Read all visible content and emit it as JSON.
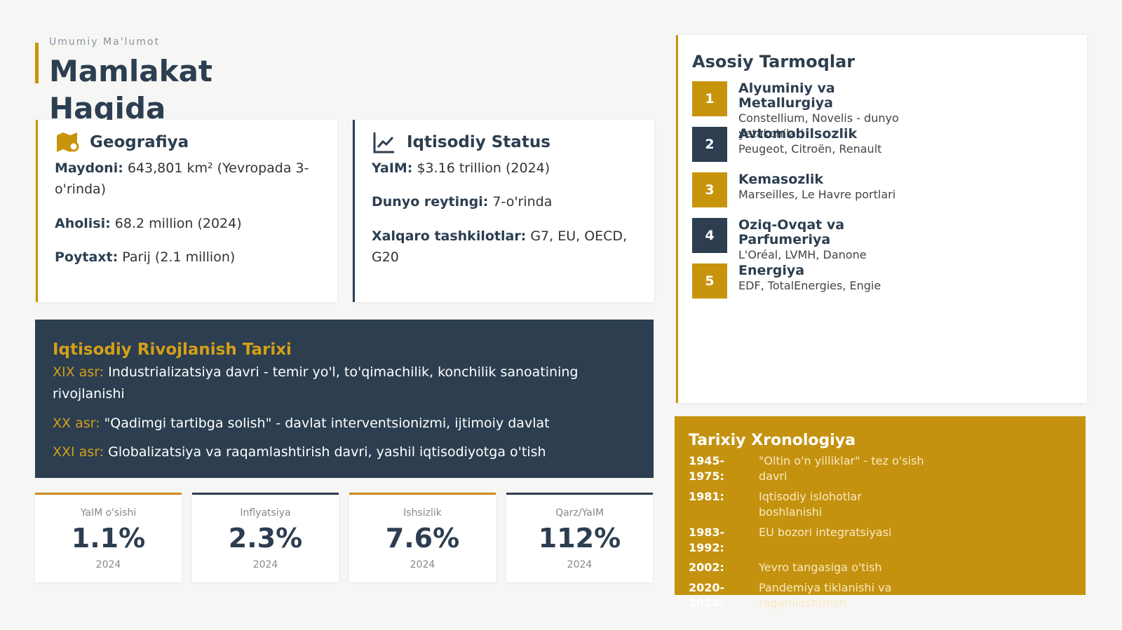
{
  "header": {
    "kicker": "Umumiy Ma'lumot",
    "title": "Mamlakat Haqida"
  },
  "geography": {
    "title": "Geografiya",
    "items": [
      {
        "label": "Maydoni:",
        "text": "643,801 km² (Yevropada 3-o'rinda)"
      },
      {
        "label": "Aholisi:",
        "text": "68.2 million (2024)"
      },
      {
        "label": "Poytaxt:",
        "text": "Parij (2.1 million)"
      }
    ]
  },
  "economy": {
    "title": "Iqtisodiy Status",
    "items": [
      {
        "label": "YaIM:",
        "text": "$3.16 trillion (2024)"
      },
      {
        "label": "Dunyo reytingi:",
        "text": "7-o'rinda"
      },
      {
        "label": "Xalqaro tashkilotlar:",
        "text": "G7, EU, OECD, G20"
      }
    ]
  },
  "history": {
    "title": "Iqtisodiy Rivojlanish Tarixi",
    "items": [
      {
        "era": "XIX asr:",
        "text": "Industrializatsiya davri - temir yo'l, to'qimachilik, konchilik sanoatining rivojlanishi"
      },
      {
        "era": "XX asr:",
        "text": "\"Qadimgi tartibga solish\" - davlat interventsionizmi, ijtimoiy davlat"
      },
      {
        "era": "XXI asr:",
        "text": "Globalizatsiya va raqamlashtirish davri, yashil iqtisodiyotga o'tish"
      }
    ]
  },
  "stats": [
    {
      "label": "YaIM o'sishi",
      "value": "1.1%",
      "year": "2024"
    },
    {
      "label": "Inflyatsiya",
      "value": "2.3%",
      "year": "2024"
    },
    {
      "label": "Ishsizlik",
      "value": "7.6%",
      "year": "2024"
    },
    {
      "label": "Qarz/YaIM",
      "value": "112%",
      "year": "2024"
    }
  ],
  "industries": {
    "title": "Asosiy Tarmoqlar",
    "items": [
      {
        "rank": "1",
        "name": "Alyuminiy va Metallurgiya",
        "desc": "Constellium, Novelis - dunyo yetakchilari"
      },
      {
        "rank": "2",
        "name": "Avtomobilsozlik",
        "desc": "Peugeot, Citroën, Renault"
      },
      {
        "rank": "3",
        "name": "Kemasozlik",
        "desc": "Marseilles, Le Havre portlari"
      },
      {
        "rank": "4",
        "name": "Oziq-Ovqat va Parfumeriya",
        "desc": "L'Oréal, LVMH, Danone"
      },
      {
        "rank": "5",
        "name": "Energiya",
        "desc": "EDF, TotalEnergies, Engie"
      }
    ]
  },
  "timeline": {
    "title": "Tarixiy Xronologiya",
    "items": [
      {
        "period": "1945-1975:",
        "event": "\"Oltin o'n yilliklar\" - tez o'sish davri"
      },
      {
        "period": "1981:",
        "event": "Iqtisodiy islohotlar boshlanishi"
      },
      {
        "period": "1983-1992:",
        "event": "EU bozori integratsiyasi"
      },
      {
        "period": "2002:",
        "event": "Yevro tangasiga o'tish"
      },
      {
        "period": "2020-2024:",
        "event": "Pandemiya tiklanishi va raqamlashtirish"
      }
    ]
  }
}
